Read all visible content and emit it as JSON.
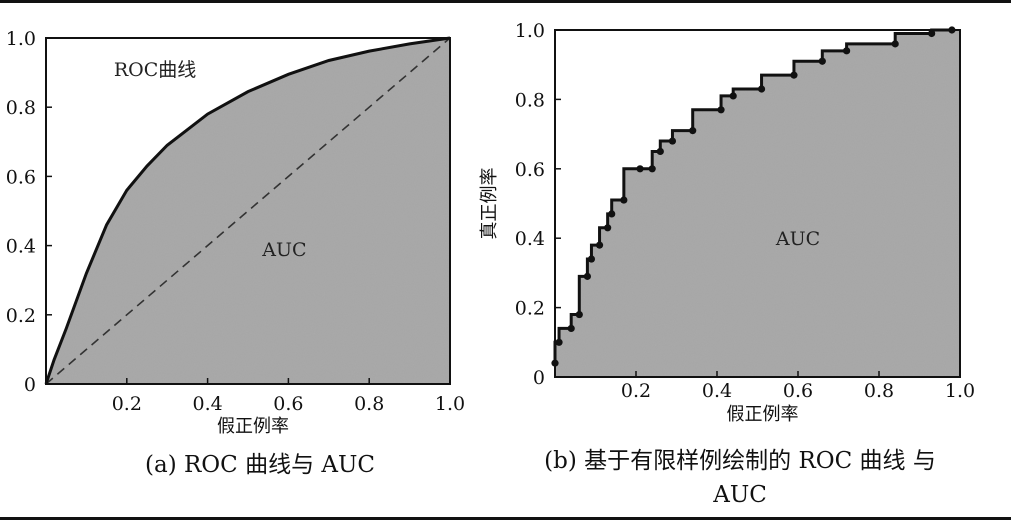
{
  "chart_data": [
    {
      "id": "a",
      "type": "area",
      "caption": "(a) ROC 曲线与 AUC",
      "xlabel": "假正例率",
      "ylabel": "",
      "xlim": [
        0,
        1
      ],
      "ylim": [
        0,
        1
      ],
      "x_ticks": [
        "0.2",
        "0.4",
        "0.6",
        "0.8",
        "1.0"
      ],
      "y_ticks": [
        "0",
        "0.2",
        "0.4",
        "0.6",
        "0.8",
        "1.0"
      ],
      "annotations": [
        {
          "text": "ROC曲线",
          "x": 0.27,
          "y": 0.89
        },
        {
          "text": "AUC",
          "x": 0.59,
          "y": 0.37
        }
      ],
      "series": [
        {
          "kind": "curve",
          "values": [
            [
              0,
              0
            ],
            [
              0.02,
              0.07
            ],
            [
              0.05,
              0.16
            ],
            [
              0.1,
              0.32
            ],
            [
              0.15,
              0.46
            ],
            [
              0.2,
              0.56
            ],
            [
              0.25,
              0.63
            ],
            [
              0.3,
              0.69
            ],
            [
              0.4,
              0.78
            ],
            [
              0.5,
              0.845
            ],
            [
              0.6,
              0.895
            ],
            [
              0.7,
              0.935
            ],
            [
              0.8,
              0.962
            ],
            [
              0.9,
              0.983
            ],
            [
              1,
              1
            ]
          ]
        },
        {
          "kind": "diagonal",
          "values": [
            [
              0,
              0
            ],
            [
              1,
              1
            ]
          ]
        }
      ],
      "colors": {
        "fill": "#a6a6a6",
        "line": "#111111"
      }
    },
    {
      "id": "b",
      "type": "area",
      "caption": "(b) 基于有限样例绘制的 ROC 曲线 与 AUC",
      "xlabel": "假正例率",
      "ylabel": "真正例率",
      "xlim": [
        0,
        1
      ],
      "ylim": [
        0,
        1
      ],
      "x_ticks": [
        "0.2",
        "0.4",
        "0.6",
        "0.8",
        "1.0"
      ],
      "y_ticks": [
        "0",
        "0.2",
        "0.4",
        "0.6",
        "0.8",
        "1.0"
      ],
      "annotations": [
        {
          "text": "AUC",
          "x": 0.6,
          "y": 0.38
        }
      ],
      "series": [
        {
          "kind": "step",
          "values": [
            [
              0,
              0.04
            ],
            [
              0,
              0.1
            ],
            [
              0.01,
              0.1
            ],
            [
              0.01,
              0.14
            ],
            [
              0.04,
              0.14
            ],
            [
              0.04,
              0.18
            ],
            [
              0.06,
              0.18
            ],
            [
              0.06,
              0.29
            ],
            [
              0.08,
              0.29
            ],
            [
              0.08,
              0.34
            ],
            [
              0.09,
              0.34
            ],
            [
              0.09,
              0.38
            ],
            [
              0.11,
              0.38
            ],
            [
              0.11,
              0.43
            ],
            [
              0.13,
              0.43
            ],
            [
              0.13,
              0.47
            ],
            [
              0.14,
              0.47
            ],
            [
              0.14,
              0.51
            ],
            [
              0.17,
              0.51
            ],
            [
              0.17,
              0.6
            ],
            [
              0.21,
              0.6
            ],
            [
              0.21,
              0.6
            ],
            [
              0.24,
              0.6
            ],
            [
              0.24,
              0.65
            ],
            [
              0.26,
              0.65
            ],
            [
              0.26,
              0.68
            ],
            [
              0.29,
              0.68
            ],
            [
              0.29,
              0.71
            ],
            [
              0.34,
              0.71
            ],
            [
              0.34,
              0.77
            ],
            [
              0.41,
              0.77
            ],
            [
              0.41,
              0.81
            ],
            [
              0.44,
              0.81
            ],
            [
              0.44,
              0.83
            ],
            [
              0.51,
              0.83
            ],
            [
              0.51,
              0.87
            ],
            [
              0.59,
              0.87
            ],
            [
              0.59,
              0.91
            ],
            [
              0.66,
              0.91
            ],
            [
              0.66,
              0.94
            ],
            [
              0.72,
              0.94
            ],
            [
              0.72,
              0.96
            ],
            [
              0.84,
              0.96
            ],
            [
              0.84,
              0.99
            ],
            [
              0.93,
              0.99
            ],
            [
              0.93,
              1
            ],
            [
              0.98,
              1
            ]
          ]
        }
      ],
      "colors": {
        "fill": "#a6a6a6",
        "line": "#111111"
      }
    }
  ]
}
